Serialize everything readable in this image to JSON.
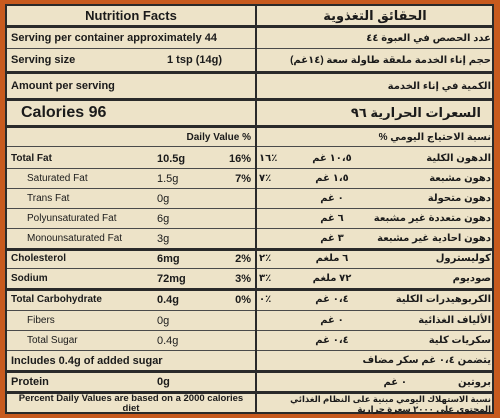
{
  "header": {
    "title_en": "Nutrition Facts",
    "title_ar": "الحقائق التغذوية"
  },
  "servings": {
    "per_container_en": "Serving per container approximately 44",
    "per_container_ar": "عدد الحصص في العبوة ٤٤",
    "size_label_en": "Serving size",
    "size_value_en": "1 tsp (14g)",
    "size_ar": "حجم إناء الخدمة    ملعقة طاولة سعة (١٤غم)",
    "amount_en": "Amount per serving",
    "amount_ar": "الكمية في إناء الخدمة"
  },
  "calories": {
    "en": "Calories 96",
    "ar": "السعرات الحرارية ٩٦"
  },
  "dv_header": {
    "en": "Daily Value %",
    "ar": "نسبة الاحتياج اليومي %"
  },
  "nutrients": [
    {
      "label": "Total Fat",
      "bold": true,
      "indent": false,
      "amount": "10.5g",
      "dv": "16%",
      "ar_label": "الدهون الكلية",
      "ar_amount": "١٠،٥ غم",
      "ar_dv": "١٦٪"
    },
    {
      "label": "Saturated Fat",
      "bold": false,
      "indent": true,
      "amount": "1.5g",
      "dv": "7%",
      "ar_label": "دهون مشبعة",
      "ar_amount": "١،٥ غم",
      "ar_dv": "٧٪"
    },
    {
      "label": "Trans Fat",
      "bold": false,
      "indent": true,
      "amount": "0g",
      "dv": "",
      "ar_label": "دهون متحولة",
      "ar_amount": "٠ غم",
      "ar_dv": ""
    },
    {
      "label": "Polyunsaturated Fat",
      "bold": false,
      "indent": true,
      "amount": "6g",
      "dv": "",
      "ar_label": "دهون متعددة غير مشبعة",
      "ar_amount": "٦ غم",
      "ar_dv": ""
    },
    {
      "label": "Monounsaturated Fat",
      "bold": false,
      "indent": true,
      "amount": "3g",
      "dv": "",
      "ar_label": "دهون احادية غير مشبعة",
      "ar_amount": "٣ غم",
      "ar_dv": ""
    },
    {
      "label": "Cholesterol",
      "bold": true,
      "indent": false,
      "amount": "6mg",
      "dv": "2%",
      "ar_label": "كوليسترول",
      "ar_amount": "٦ ملغم",
      "ar_dv": "٢٪"
    },
    {
      "label": "Sodium",
      "bold": true,
      "indent": false,
      "amount": "72mg",
      "dv": "3%",
      "ar_label": "صوديوم",
      "ar_amount": "٧٢ ملغم",
      "ar_dv": "٣٪"
    },
    {
      "label": "Total Carbohydrate",
      "bold": true,
      "indent": false,
      "amount": "0.4g",
      "dv": "0%",
      "ar_label": "الكربوهيدرات الكلية",
      "ar_amount": "٠،٤ غم",
      "ar_dv": "٠٪"
    },
    {
      "label": "Fibers",
      "bold": false,
      "indent": true,
      "amount": "0g",
      "dv": "",
      "ar_label": "الألياف الغذائية",
      "ar_amount": "٠ غم",
      "ar_dv": ""
    },
    {
      "label": "Total Sugar",
      "bold": false,
      "indent": true,
      "amount": "0.4g",
      "dv": "",
      "ar_label": "سكريات كلية",
      "ar_amount": "٠،٤ غم",
      "ar_dv": ""
    }
  ],
  "added_sugar": {
    "en": "Includes 0.4g of added sugar",
    "ar": "يتضمن ٠،٤ غم سكر مضاف"
  },
  "protein": {
    "label": "Protein",
    "amount": "0g",
    "ar_label": "بروتين",
    "ar_amount": "٠ غم"
  },
  "footnote": {
    "en": "Percent Daily Values are based on a 2000 calories diet",
    "ar": "نسبة الاستهلاك اليومي مبنية على النظام الغذائي المحتوي على ٢٠٠٠ سعرة حرارية"
  },
  "colors": {
    "background": "#c75a1e",
    "panel": "#ede3c8",
    "ink": "#1b1b1b"
  }
}
